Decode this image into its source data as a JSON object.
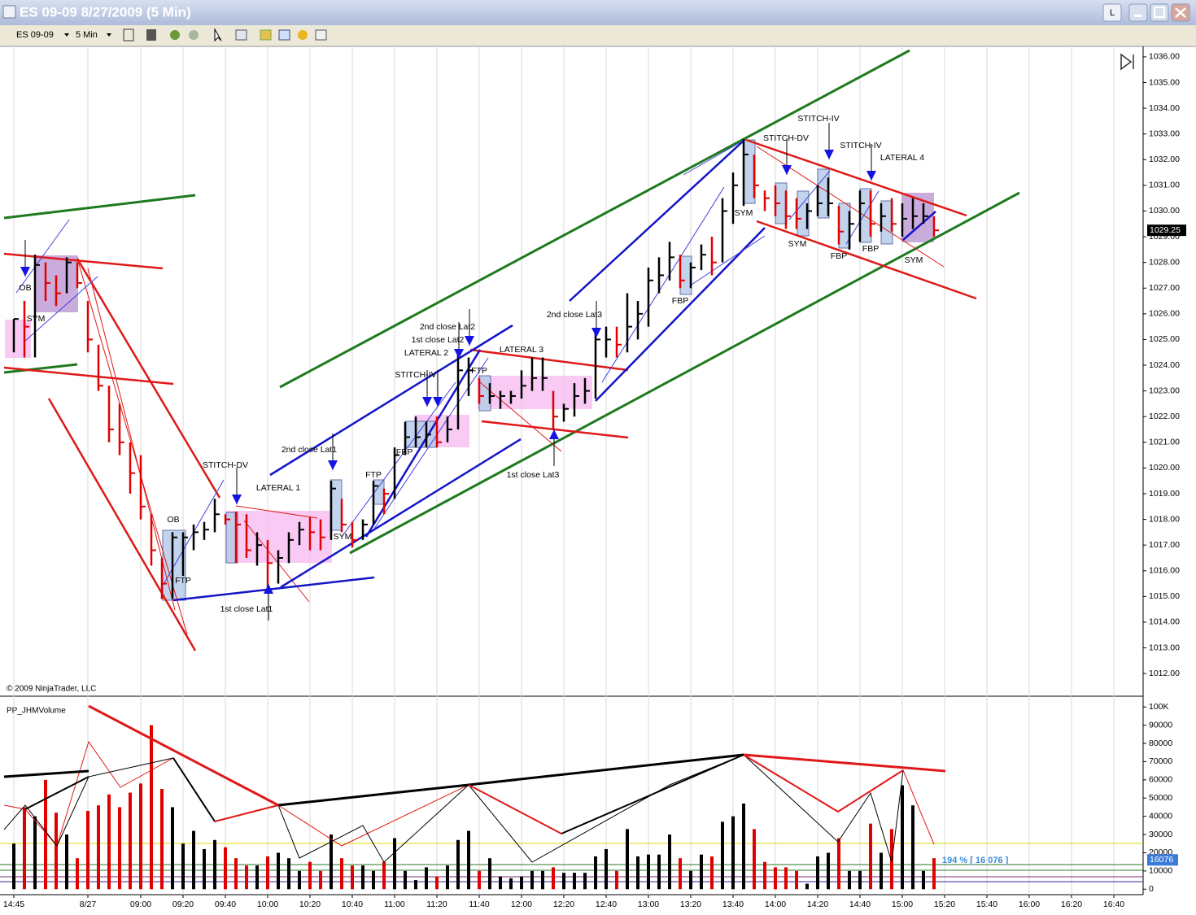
{
  "window": {
    "title": "ES 09-09  8/27/2009 (5 Min)",
    "button": "L"
  },
  "toolbar": {
    "instrument": "ES 09-09",
    "interval": "5 Min"
  },
  "chart_data": [
    {
      "type": "ohlc",
      "high": [
        1025.8,
        1026.5,
        1028.3,
        1028,
        1027.5,
        1028.2,
        1028,
        1026.5,
        1024.8,
        1023.2,
        1022.5,
        1021,
        1020.5,
        1018.2,
        1016.5,
        1017.5,
        1017.5,
        1017.8,
        1017.9,
        1018.8,
        1018.2,
        1018.3,
        1018.2,
        1017.5,
        1017.2,
        1016.8,
        1017.5,
        1017.9,
        1018.1,
        1018,
        1019.5,
        1018.8,
        1017.9,
        1018,
        1019.5,
        1019.2,
        1020.8,
        1021.8,
        1022,
        1021.8,
        1022,
        1022,
        1024.5,
        1024.3,
        1023.5,
        1023.3,
        1023,
        1023,
        1023.8,
        1024.3,
        1024.3,
        1023,
        1022.5,
        1023.3,
        1023.5,
        1025.3,
        1025.5,
        1025.5,
        1026.8,
        1026.5,
        1027.8,
        1028.2,
        1028.8,
        1028.3,
        1028,
        1028.7,
        1029,
        1030.5,
        1031.5,
        1032.8,
        1032.2,
        1030.8,
        1031,
        1030.8,
        1030.5,
        1030.3,
        1031,
        1031.3,
        1030.2,
        1030,
        1030.8,
        1030.8,
        1030.3,
        1030.5,
        1030.3,
        1030.5,
        1030.3,
        1029.8
      ],
      "low": [
        1024.5,
        1024.3,
        1024.3,
        1026.5,
        1026.3,
        1026.8,
        1027,
        1024.5,
        1023,
        1021,
        1020.5,
        1019,
        1018,
        1016.2,
        1014.9,
        1014.9,
        1015.8,
        1016.8,
        1017.2,
        1017.5,
        1017.8,
        1016.3,
        1016.5,
        1016.2,
        1015.3,
        1015.5,
        1016.3,
        1017,
        1016.8,
        1016.8,
        1017.2,
        1017.5,
        1016.9,
        1017.2,
        1017.8,
        1018.2,
        1018.8,
        1020.5,
        1020.8,
        1020.8,
        1020.8,
        1021,
        1021.5,
        1022.8,
        1022.5,
        1022.5,
        1022.3,
        1022.5,
        1022.7,
        1023,
        1023,
        1021.5,
        1021.8,
        1022,
        1022.5,
        1022.7,
        1024.3,
        1024.3,
        1024.5,
        1025,
        1025.5,
        1026.8,
        1027.3,
        1027,
        1027,
        1027.7,
        1027.5,
        1028,
        1029.5,
        1030.2,
        1030.5,
        1030,
        1029.8,
        1029.3,
        1029.3,
        1029.3,
        1029.8,
        1029.8,
        1028.7,
        1028.5,
        1028.8,
        1029,
        1029.2,
        1029.2,
        1029,
        1029.3,
        1029.5,
        1029
      ],
      "close": [
        1025.8,
        1025.5,
        1027.9,
        1027.2,
        1026.8,
        1028,
        1027.2,
        1025,
        1023.2,
        1021.5,
        1021,
        1019.8,
        1018.5,
        1016.8,
        1015.5,
        1017.3,
        1017.3,
        1017.5,
        1017.6,
        1018.2,
        1018,
        1017.8,
        1016.8,
        1017,
        1016.3,
        1016.5,
        1017.2,
        1017.6,
        1017.5,
        1017.3,
        1019.2,
        1017.8,
        1017.2,
        1017.8,
        1019.3,
        1019,
        1020.5,
        1021.2,
        1021.2,
        1021.3,
        1021,
        1021.5,
        1023.8,
        1023.8,
        1022.8,
        1022.8,
        1022.8,
        1022.8,
        1023.2,
        1023.5,
        1023.5,
        1022,
        1022.3,
        1022.8,
        1023,
        1025,
        1025,
        1024.8,
        1025.5,
        1026,
        1027.3,
        1027.5,
        1028.2,
        1027.3,
        1027.8,
        1028.3,
        1028,
        1030,
        1031,
        1032.2,
        1031,
        1030.5,
        1030.3,
        1029.8,
        1029.7,
        1030,
        1030.3,
        1030.3,
        1029.2,
        1029.5,
        1030.3,
        1029.5,
        1029.8,
        1029.5,
        1029.7,
        1029.8,
        1029.8,
        1029.25
      ],
      "up_color": "#000000",
      "down_color": "#e00000",
      "ylim": [
        1011.15,
        1036.25
      ],
      "yticks": [
        {
          "value": 1012,
          "label": "1012.00"
        },
        {
          "value": 1013,
          "label": "1013.00"
        },
        {
          "value": 1014,
          "label": "1014.00"
        },
        {
          "value": 1015,
          "label": "1015.00"
        },
        {
          "value": 1016,
          "label": "1016.00"
        },
        {
          "value": 1017,
          "label": "1017.00"
        },
        {
          "value": 1018,
          "label": "1018.00"
        },
        {
          "value": 1019,
          "label": "1019.00"
        },
        {
          "value": 1020,
          "label": "1020.00"
        },
        {
          "value": 1021,
          "label": "1021.00"
        },
        {
          "value": 1022,
          "label": "1022.00"
        },
        {
          "value": 1023,
          "label": "1023.00"
        },
        {
          "value": 1024,
          "label": "1024.00"
        },
        {
          "value": 1025,
          "label": "1025.00"
        },
        {
          "value": 1026,
          "label": "1026.00"
        },
        {
          "value": 1027,
          "label": "1027.00"
        },
        {
          "value": 1028,
          "label": "1028.00"
        },
        {
          "value": 1029,
          "label": "1029.00"
        },
        {
          "value": 1030,
          "label": "1030.00"
        },
        {
          "value": 1031,
          "label": "1031.00"
        },
        {
          "value": 1032,
          "label": "1032.00"
        },
        {
          "value": 1033,
          "label": "1033.00"
        },
        {
          "value": 1034,
          "label": "1034.00"
        },
        {
          "value": 1035,
          "label": "1035.00"
        },
        {
          "value": 1036,
          "label": "1036.00"
        }
      ],
      "last_price": 1029.25,
      "copyright": "© 2009 NinjaTrader, LLC",
      "annotations": [
        "OB",
        "SYM",
        "OB",
        "FTP",
        "STITCH-DV",
        "LATERAL 1",
        "1st close Lat1",
        "SYM",
        "2nd close Lat1",
        "FTP",
        "FBP",
        "STITCH-IV",
        "LATERAL 2",
        "1st close Lat2",
        "2nd close Lat2",
        "FTP",
        "LATERAL 3",
        "1st close Lat3",
        "2nd close Lat3",
        "FBP",
        "SYM",
        "STITCH-DV",
        "STITCH-IV",
        "STITCH-IV",
        "LATERAL 4",
        "SYM",
        "FBP",
        "FBP",
        "SYM"
      ]
    },
    {
      "type": "bar",
      "title": "PP_JHMVolume",
      "categories": [
        "14:45",
        null,
        null,
        null,
        null,
        null,
        null,
        "8/27",
        null,
        null,
        null,
        null,
        "09:00",
        null,
        null,
        null,
        "09:20",
        null,
        null,
        null,
        "09:40",
        null,
        null,
        null,
        "10:00",
        null,
        null,
        null,
        "10:20",
        null,
        null,
        null,
        "10:40",
        null,
        null,
        null,
        "11:00",
        null,
        null,
        null,
        "11:20",
        null,
        null,
        null,
        "11:40",
        null,
        null,
        null,
        "12:00",
        null,
        null,
        null,
        "12:20",
        null,
        null,
        null,
        "12:40",
        null,
        null,
        null,
        "13:00",
        null,
        null,
        null,
        "13:20",
        null,
        null,
        null,
        "13:40",
        null,
        null,
        null,
        "14:00",
        null,
        null,
        null,
        "14:20",
        null,
        null,
        null,
        "14:40",
        null,
        null,
        null,
        "15:00",
        null,
        null,
        null,
        "15:20",
        null,
        null,
        null,
        "15:40",
        null,
        null,
        null,
        "16:00",
        null,
        null,
        null,
        "16:20",
        null,
        null,
        null,
        "16:40"
      ],
      "values": [
        25000,
        45000,
        40000,
        60000,
        42000,
        30000,
        17000,
        43000,
        46000,
        52000,
        45000,
        53000,
        58000,
        90000,
        55000,
        45000,
        25000,
        32000,
        22000,
        27000,
        23000,
        17000,
        13000,
        13000,
        18000,
        20000,
        17000,
        10000,
        15000,
        10000,
        30000,
        17000,
        13000,
        13000,
        10000,
        15000,
        28000,
        10000,
        5000,
        12000,
        7000,
        13000,
        27000,
        32000,
        10000,
        17000,
        7000,
        6000,
        7000,
        10000,
        10000,
        12000,
        9000,
        9000,
        9000,
        18000,
        22000,
        10000,
        33000,
        18000,
        19000,
        19000,
        30000,
        17000,
        10000,
        19000,
        18000,
        37000,
        40000,
        47000,
        33000,
        15000,
        12000,
        12000,
        10000,
        3000,
        18000,
        20000,
        28000,
        10000,
        10000,
        36000,
        20000,
        33000,
        57000,
        46000,
        10000,
        17000,
        null,
        null,
        null,
        null,
        null,
        null,
        null,
        null,
        null,
        null,
        null,
        null,
        null,
        null,
        null,
        null,
        null
      ],
      "ylim": [
        -3000,
        105000
      ],
      "yticks": [
        0,
        10000,
        20000,
        30000,
        40000,
        50000,
        60000,
        70000,
        80000,
        90000,
        {
          "value": 100000,
          "label": "100K"
        }
      ],
      "last_volume": 16076,
      "annotation": "194 % [ 16 076 ]"
    }
  ]
}
